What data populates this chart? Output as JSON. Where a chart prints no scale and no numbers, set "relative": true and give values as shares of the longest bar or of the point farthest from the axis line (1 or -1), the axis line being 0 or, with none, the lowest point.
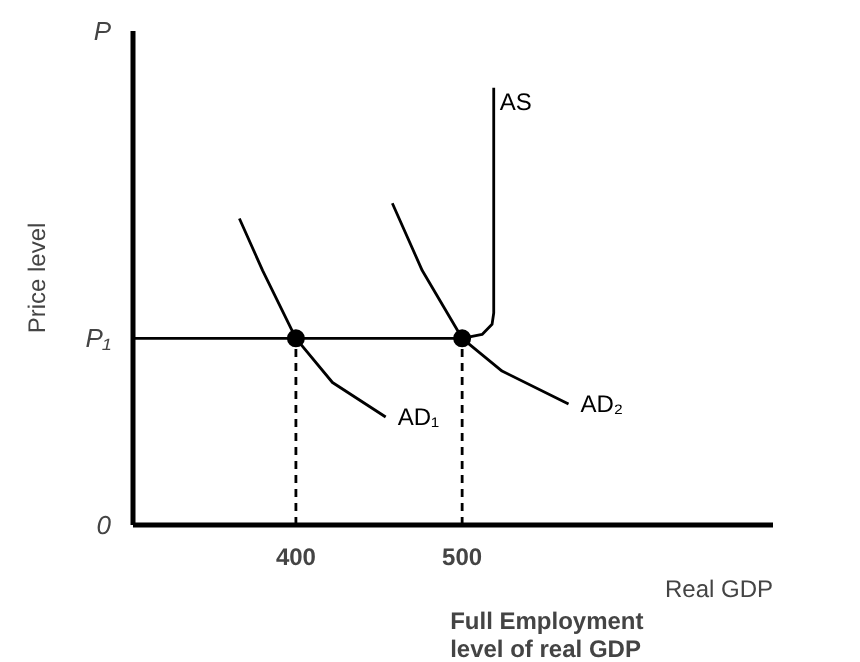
{
  "chart_data": {
    "type": "line",
    "xlabel": "Real GDP",
    "ylabel": "Price level",
    "xlim": [
      302,
      687
    ],
    "xticks": [
      400,
      500
    ],
    "relative": true,
    "grid": false,
    "marker": "none",
    "series": [
      {
        "name": "AD₁",
        "color": "#000000",
        "x": [
          366,
          380,
          400,
          422,
          454
        ],
        "values": [
          0.701,
          0.582,
          0.427,
          0.326,
          0.247
        ]
      },
      {
        "name": "AD₂",
        "color": "#000000",
        "x": [
          458,
          476,
          500,
          524,
          564
        ],
        "values": [
          0.736,
          0.582,
          0.427,
          0.352,
          0.277
        ]
      },
      {
        "name": "AS",
        "color": "#000000",
        "x": [
          302,
          500,
          512,
          518,
          519,
          519
        ],
        "values": [
          0.427,
          0.427,
          0.436,
          0.459,
          0.485,
          1
        ]
      },
      {
        "color": "#000000",
        "line_style": "dashed",
        "x": [
          400,
          400
        ],
        "values": [
          0,
          0.427
        ]
      },
      {
        "color": "#000000",
        "line_style": "dashed",
        "x": [
          500,
          500
        ],
        "values": [
          0,
          0.427
        ]
      },
      {
        "type": "scatter",
        "marker": "circle",
        "color": "#000000",
        "x": [
          400,
          500
        ],
        "values": [
          0.427,
          0.427
        ]
      }
    ],
    "annotations": [
      "0",
      "P₁",
      "P",
      "Full Employment\nlevel of real GDP"
    ]
  }
}
